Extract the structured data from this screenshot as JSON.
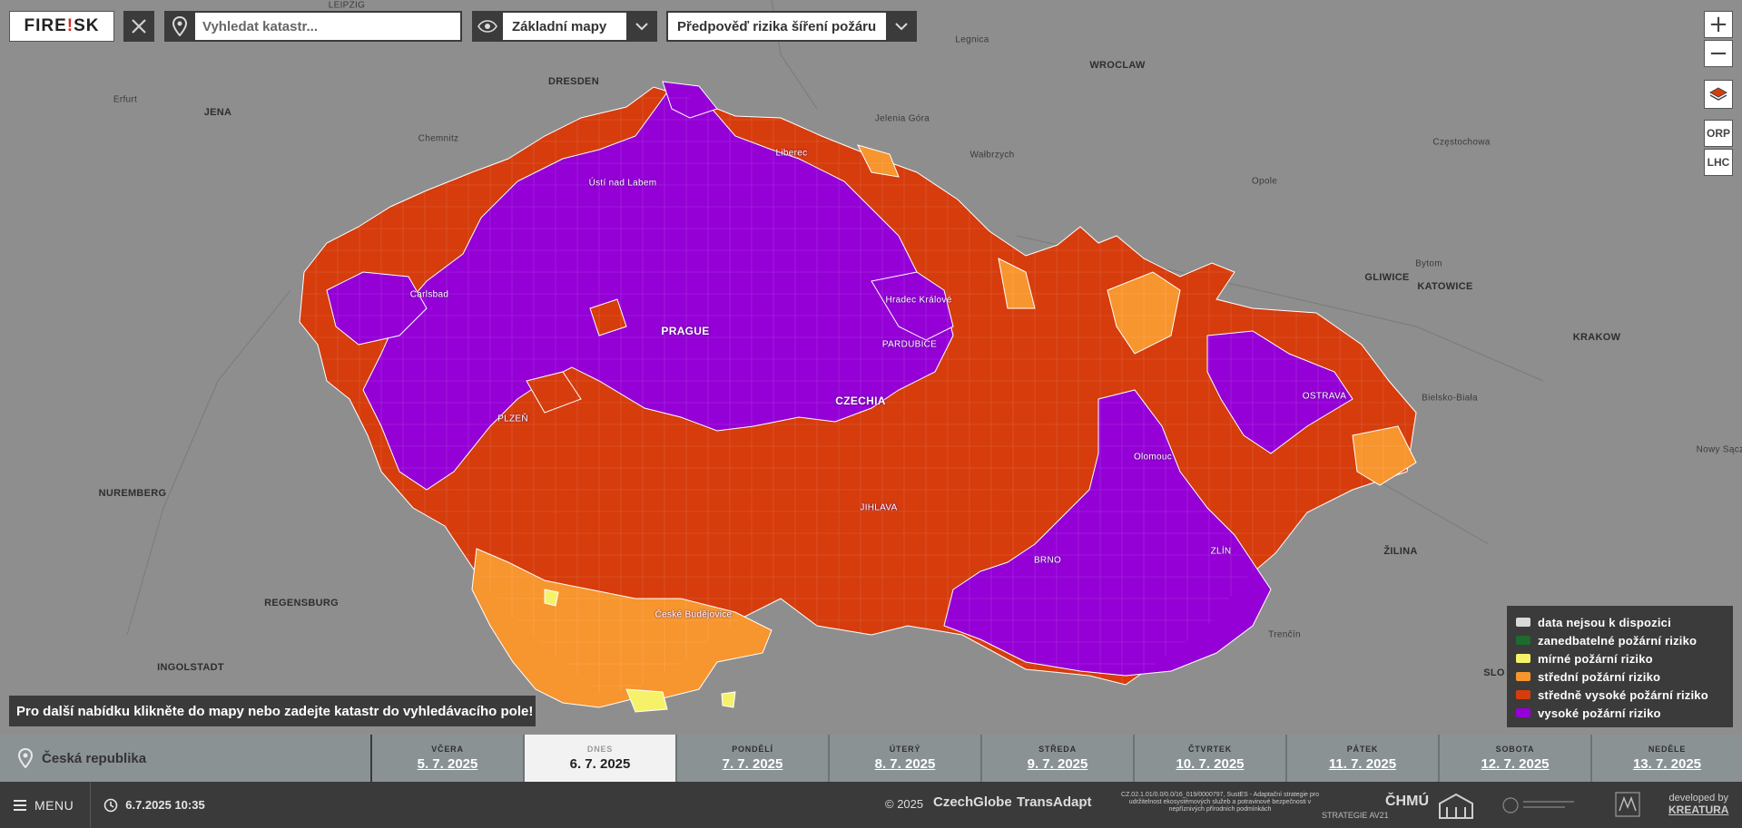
{
  "app": {
    "logo_text": "FIRE",
    "logo_bang": "!",
    "logo_text2": "SK"
  },
  "search": {
    "placeholder": "Vyhledat katastr..."
  },
  "basemap_dropdown": {
    "label": "Základní mapy"
  },
  "layer_dropdown": {
    "label": "Předpověď rizika šíření požáru"
  },
  "controls": {
    "zoom_in": "+",
    "zoom_out": "−",
    "orp": "ORP",
    "lhc": "LHC"
  },
  "map_labels": {
    "leipzig": "LEIPZIG",
    "dresden": "DRESDEN",
    "erfurt": "Erfurt",
    "jena": "JENA",
    "chemnitz": "Chemnitz",
    "legnica": "Legnica",
    "wroclaw": "WROCLAW",
    "jelenia_gora": "Jelenia Góra",
    "walbrzych": "Wałbrzych",
    "opole": "Opole",
    "czestochowa": "Częstochowa",
    "bytom": "Bytom",
    "gliwice": "GLIWICE",
    "katowice": "KATOWICE",
    "krakow": "KRAKOW",
    "bielsko": "Bielsko-Biała",
    "nowy_sacz": "Nowy Sącz",
    "zilina": "ŽILINA",
    "trencin": "Trenčín",
    "nuremberg": "NUREMBERG",
    "regensburg": "REGENSBURG",
    "ingolstadt": "INGOLSTADT",
    "usti": "Ústí nad Labem",
    "liberec": "Liberec",
    "karlsbad": "Carlsbad",
    "prague": "PRAGUE",
    "hradec": "Hradec Králové",
    "pardubice": "PARDUBICE",
    "czechia": "CZECHIA",
    "plzen": "PLZEŇ",
    "ostrava": "OSTRAVA",
    "olomouc": "Olomouc",
    "jihlava": "JIHLAVA",
    "brno": "BRNO",
    "zlin": "ZLÍN",
    "ceske_budejovice": "České Budějovice",
    "edge_k": "K",
    "edge_slo": "SLO"
  },
  "legend": {
    "items": [
      {
        "label": "data nejsou k dispozici",
        "color": "#d9d9d9"
      },
      {
        "label": "zanedbatelné požární riziko",
        "color": "#1d6b2e"
      },
      {
        "label": "mírné požární riziko",
        "color": "#f5f26a"
      },
      {
        "label": "střední požární riziko",
        "color": "#f7952e"
      },
      {
        "label": "středně vysoké požární riziko",
        "color": "#d63c0c"
      },
      {
        "label": "vysoké požární riziko",
        "color": "#9400d6"
      }
    ]
  },
  "hint": {
    "text": "Pro další nabídku klikněte do mapy nebo zadejte katastr do vyhledávacího pole!"
  },
  "region": {
    "label": "Česká republika"
  },
  "days": [
    {
      "name": "VČERA",
      "date": "5. 7. 2025"
    },
    {
      "name": "DNES",
      "date": "6. 7. 2025",
      "active": true
    },
    {
      "name": "PONDĚLÍ",
      "date": "7. 7. 2025"
    },
    {
      "name": "ÚTERÝ",
      "date": "8. 7. 2025"
    },
    {
      "name": "STŘEDA",
      "date": "9. 7. 2025"
    },
    {
      "name": "ČTVRTEK",
      "date": "10. 7. 2025"
    },
    {
      "name": "PÁTEK",
      "date": "11. 7. 2025"
    },
    {
      "name": "SOBOTA",
      "date": "12. 7. 2025"
    },
    {
      "name": "NEDĚLE",
      "date": "13. 7. 2025"
    }
  ],
  "footer": {
    "menu": "MENU",
    "datetime": "6.7.2025 10:35",
    "copyright": "© 2025",
    "czechglobe": "CzechGlobe",
    "transadapt": "TransAdapt",
    "project_text": "CZ.02.1.01/0.0/0.0/16_019/0000797, SustES - Adaptační strategie pro udržitelnost ekosystémových služeb a potravinové bezpečnosti v nepříznivých přírodních podmínkách",
    "strategie": "STRATEGIE AV21",
    "chmu": "ČHMÚ",
    "developed_by": "developed by",
    "kreatura": "KREATURA"
  }
}
